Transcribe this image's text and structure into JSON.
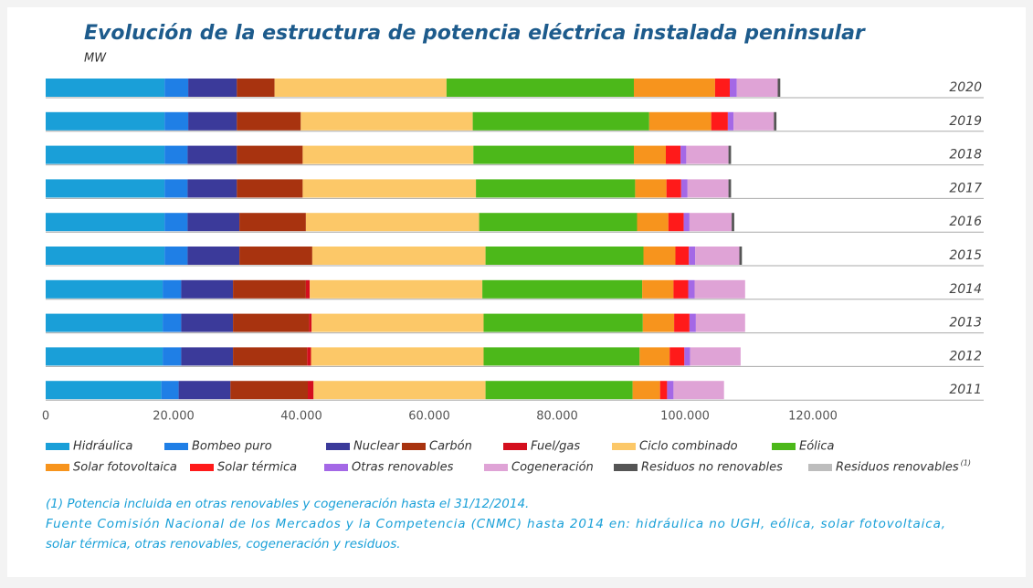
{
  "chart_data": {
    "type": "stacked_barh",
    "title": "Evolución de la estructura de potencia eléctrica instalada peninsular",
    "subtitle": "MW",
    "categories": [
      "2020",
      "2019",
      "2018",
      "2017",
      "2016",
      "2015",
      "2014",
      "2013",
      "2012",
      "2011"
    ],
    "series": [
      {
        "name": "Hidráulica",
        "color": "#1a9fd8",
        "values": [
          18600,
          18600,
          18600,
          18600,
          18600,
          18600,
          18300,
          18300,
          18300,
          18100
        ]
      },
      {
        "name": "Bombeo puro",
        "color": "#1f7fe6",
        "values": [
          3700,
          3700,
          3600,
          3600,
          3600,
          3600,
          2900,
          2900,
          2900,
          2700
        ]
      },
      {
        "name": "Nuclear",
        "color": "#3b3a9a",
        "values": [
          7600,
          7600,
          7700,
          7700,
          8100,
          8100,
          8100,
          8100,
          8100,
          8100
        ]
      },
      {
        "name": "Carbón",
        "color": "#a8330f",
        "values": [
          5900,
          10000,
          10300,
          10300,
          10400,
          11400,
          11400,
          11900,
          11600,
          12100
        ]
      },
      {
        "name": "Fuel/gas",
        "color": "#d40f1e",
        "values": [
          0,
          0,
          0,
          0,
          0,
          0,
          600,
          400,
          600,
          900
        ]
      },
      {
        "name": "Ciclo combinado",
        "color": "#fcc868",
        "values": [
          26900,
          26900,
          26700,
          27100,
          27100,
          27100,
          27000,
          26900,
          27000,
          26900
        ]
      },
      {
        "name": "Eólica",
        "color": "#4cb81a",
        "values": [
          29300,
          27600,
          25100,
          24900,
          24700,
          24700,
          25000,
          24900,
          24400,
          23000
        ]
      },
      {
        "name": "Solar fotovoltaica",
        "color": "#f7941d",
        "values": [
          12700,
          9700,
          5000,
          4900,
          4900,
          5000,
          4900,
          4900,
          4700,
          4300
        ]
      },
      {
        "name": "Solar térmica",
        "color": "#ff1a1a",
        "values": [
          2300,
          2600,
          2300,
          2300,
          2400,
          2100,
          2300,
          2400,
          2300,
          1100
        ]
      },
      {
        "name": "Otras renovables",
        "color": "#a468e6",
        "values": [
          1100,
          900,
          900,
          1000,
          900,
          1000,
          1000,
          1000,
          900,
          1000
        ]
      },
      {
        "name": "Cogeneración",
        "color": "#dfa3d6",
        "values": [
          6400,
          6300,
          6600,
          6400,
          6600,
          6900,
          7900,
          7700,
          7900,
          7900
        ]
      },
      {
        "name": "Residuos no renovables",
        "color": "#555555",
        "values": [
          400,
          400,
          400,
          400,
          400,
          400,
          0,
          0,
          0,
          0
        ]
      },
      {
        "name": "Residuos  renovables",
        "color": "#bdbdbd",
        "values": [
          0,
          0,
          0,
          0,
          0,
          0,
          0,
          0,
          0,
          0
        ]
      }
    ],
    "legend_superscript": "(1)",
    "xlim": [
      0,
      140000
    ],
    "xticks": [
      0,
      {
        "value": 20000,
        "label": "20.000"
      },
      {
        "value": 40000,
        "label": "40.000"
      },
      {
        "value": 60000,
        "label": "60.000"
      },
      {
        "value": 80000,
        "label": "80.000"
      },
      {
        "value": 100000,
        "label": "100.000"
      },
      {
        "value": 120000,
        "label": "120.000"
      }
    ],
    "notes": [
      "(1) Potencia incluida en otras renovables y cogeneración hasta el 31/12/2014.",
      "Fuente Comisión Nacional de los Mercados y la Competencia (CNMC) hasta 2014 en: hidráulica no UGH, eólica, solar fotovoltaica,",
      "solar térmica, otras renovables, cogeneración y residuos."
    ]
  }
}
